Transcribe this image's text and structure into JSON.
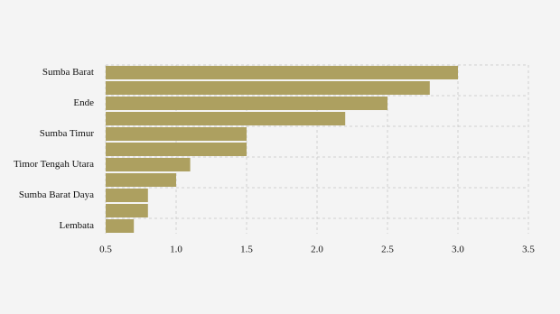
{
  "chart_data": {
    "type": "bar",
    "orientation": "horizontal",
    "categories": [
      "Sumba Barat",
      null,
      "Ende",
      null,
      "Sumba Timur",
      null,
      "Timor Tengah Utara",
      null,
      "Sumba Barat Daya",
      null,
      "Lembata"
    ],
    "values": [
      3.0,
      2.8,
      2.5,
      2.2,
      1.5,
      1.5,
      1.1,
      1.0,
      0.8,
      0.8,
      0.7
    ],
    "color": "#ada060",
    "xlim": [
      0.5,
      3.5
    ],
    "xticks": [
      0.5,
      {
        "value": 1,
        "label": "1.0"
      },
      1.5,
      {
        "value": 2,
        "label": "2.0"
      },
      2.5,
      {
        "value": 3,
        "label": "3.0"
      },
      3.5
    ],
    "grid": true
  }
}
